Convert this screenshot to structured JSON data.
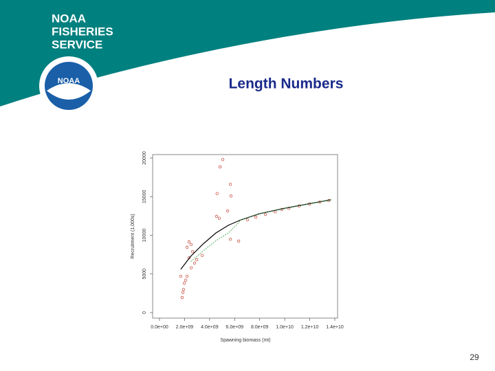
{
  "header": {
    "logo_lines": [
      "NOAA",
      "FISHERIES",
      "SERVICE"
    ],
    "logo_badge": "NOAA"
  },
  "slide": {
    "title": "Length Numbers",
    "page_number": "29"
  },
  "chart_data": {
    "type": "scatter",
    "xlabel": "Spawning biomass (mt)",
    "ylabel": "Recruitment (1,000s)",
    "xlim": [
      0,
      14000000000
    ],
    "ylim": [
      0,
      20000
    ],
    "xticks": [
      {
        "value": 0,
        "label": "0.0e+00"
      },
      {
        "value": 2000000000,
        "label": "2.0e+09"
      },
      {
        "value": 4000000000,
        "label": "4.0e+09"
      },
      {
        "value": 6000000000,
        "label": "6.0e+09"
      },
      {
        "value": 8000000000,
        "label": "8.0e+09"
      },
      {
        "value": 10000000000,
        "label": "1.0e+10"
      },
      {
        "value": 12000000000,
        "label": "1.2e+10"
      },
      {
        "value": 14000000000,
        "label": "1.4e+10"
      }
    ],
    "yticks": [
      0,
      5000,
      10000,
      15000,
      20000
    ],
    "series": [
      {
        "mode": "points",
        "color": "#c0392b",
        "x": [
          5050000000,
          4840000000,
          5660000000,
          4600000000,
          5710000000,
          5440000000,
          4560000000,
          4780000000,
          5660000000,
          6320000000,
          2360000000,
          2530000000,
          2200000000,
          2640000000,
          2360000000,
          3410000000,
          2970000000,
          2800000000,
          2530000000,
          1700000000,
          2200000000,
          2090000000,
          1980000000,
          1920000000,
          1870000000,
          1810000000,
          7030000000,
          7690000000,
          8460000000,
          9230000000,
          9780000000,
          10330000000,
          11150000000,
          11980000000,
          12800000000,
          13520000000
        ],
        "values": [
          19800,
          18850,
          16600,
          15400,
          15100,
          13150,
          12450,
          12200,
          9500,
          9250,
          9150,
          8800,
          8450,
          7900,
          7100,
          7400,
          6850,
          6400,
          5800,
          4700,
          4700,
          4200,
          3800,
          3000,
          2600,
          1950,
          12000,
          12350,
          12700,
          13050,
          13350,
          13500,
          13800,
          14050,
          14300,
          14500
        ]
      },
      {
        "mode": "line",
        "color": "#000000",
        "dash": false,
        "x": [
          1700000000,
          2500000000,
          3500000000,
          4500000000,
          5500000000,
          6500000000,
          8000000000,
          10000000000,
          12000000000,
          13700000000
        ],
        "values": [
          5600,
          7300,
          8900,
          10300,
          11300,
          12000,
          12800,
          13500,
          14100,
          14600
        ]
      },
      {
        "mode": "line",
        "color": "#2e9e3a",
        "dash": true,
        "x": [
          2500000000,
          3500000000,
          4500000000,
          5500000000,
          6300000000,
          6500000000,
          8000000000,
          10000000000,
          12000000000,
          13700000000
        ],
        "values": [
          6600,
          8000,
          9300,
          10300,
          11600,
          12000,
          12800,
          13500,
          14100,
          14600
        ]
      }
    ]
  }
}
